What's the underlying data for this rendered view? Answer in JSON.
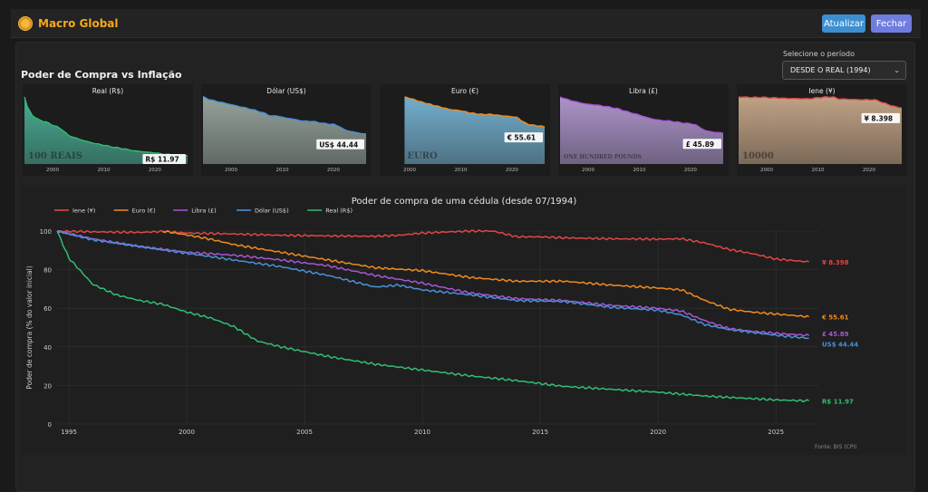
{
  "app": {
    "title": "Macro Global",
    "logo_icon": "coin-logo-icon"
  },
  "toolbar": {
    "update_label": "Atualizar",
    "close_label": "Fechar"
  },
  "page": {
    "title": "Poder de Compra vs Inflação"
  },
  "period": {
    "label": "Selecione o período",
    "selected": "DESDE O REAL (1994)"
  },
  "cards": [
    {
      "title": "Real (R$)",
      "value_label": "R$ 11.97",
      "color": "#2fbf71",
      "note_tint": "#4bb39a",
      "side": "left",
      "ticks": [
        "2000",
        "2010",
        "2020"
      ],
      "note_text": "100 REAIS"
    },
    {
      "title": "Dólar (US$)",
      "value_label": "US$ 44.44",
      "color": "#4a90d9",
      "note_tint": "#9aa9a0",
      "side": "right",
      "ticks": [
        "2000",
        "2010",
        "2020"
      ],
      "note_text": ""
    },
    {
      "title": "Euro (€)",
      "value_label": "€ 55.61",
      "color": "#f08a1d",
      "note_tint": "#77b7d8",
      "side": "right",
      "ticks": [
        "2000",
        "2010",
        "2020"
      ],
      "note_text": "100 EURO"
    },
    {
      "title": "Libra (£)",
      "value_label": "£ 45.89",
      "color": "#a855d6",
      "note_tint": "#b49ad3",
      "side": "right",
      "ticks": [
        "2000",
        "2010",
        "2020"
      ],
      "note_text": "ONE HUNDRED POUNDS"
    },
    {
      "title": "Iene (¥)",
      "value_label": "¥ 8.398",
      "color": "#e04646",
      "note_tint": "#c9a98a",
      "side": "right",
      "ticks": [
        "2000",
        "2010",
        "2020"
      ],
      "note_text": "10000"
    }
  ],
  "chart_data": {
    "type": "line",
    "title": "Poder de compra de uma cédula (desde 07/1994)",
    "ylabel": "Poder de compra (% do valor inicial)",
    "xlabel": "",
    "xlim": [
      1994.5,
      2026.8
    ],
    "ylim": [
      0,
      100
    ],
    "xticks": [
      1995,
      2000,
      2005,
      2010,
      2015,
      2020,
      2025
    ],
    "yticks": [
      0,
      20,
      40,
      60,
      80,
      100
    ],
    "grid": true,
    "legend_position": "top-left",
    "source": "Fonte: BIS (CPI)",
    "series": [
      {
        "name": "Iene (¥)",
        "color": "#e04646",
        "end_label": "¥ 8.398",
        "x": [
          1994.5,
          1996,
          1998,
          1999,
          2000,
          2002,
          2004,
          2006,
          2008,
          2009,
          2010,
          2012,
          2013,
          2014,
          2015,
          2016,
          2018,
          2020,
          2021,
          2022,
          2023,
          2024,
          2025,
          2026.4
        ],
        "y": [
          100,
          99.6,
          99.3,
          99.8,
          99,
          98.5,
          97.8,
          97.5,
          97.3,
          97.8,
          99,
          100,
          100,
          97,
          97,
          96.5,
          96,
          95.8,
          96,
          93.8,
          90.5,
          88.3,
          85.5,
          84
        ]
      },
      {
        "name": "Euro (€)",
        "color": "#f08a1d",
        "end_label": "€ 55.61",
        "x": [
          1999,
          2000,
          2001,
          2002,
          2004,
          2006,
          2008,
          2010,
          2012,
          2014,
          2016,
          2018,
          2020,
          2021,
          2022,
          2023,
          2024,
          2025,
          2026.4
        ],
        "y": [
          100,
          98,
          95.8,
          93,
          89,
          85,
          81,
          79.5,
          76,
          74,
          74,
          72,
          70.5,
          69.5,
          64,
          59.5,
          58,
          57,
          55.6
        ]
      },
      {
        "name": "Libra (£)",
        "color": "#a855d6",
        "end_label": "£ 45.89",
        "x": [
          1994.5,
          1996,
          1998,
          2000,
          2002,
          2004,
          2006,
          2008,
          2010,
          2012,
          2014,
          2016,
          2018,
          2020,
          2021,
          2022,
          2023,
          2024,
          2025,
          2026.4
        ],
        "y": [
          100,
          96,
          92,
          89,
          87.5,
          85,
          82,
          77,
          73,
          68,
          65,
          64,
          61.5,
          60,
          58.5,
          53.5,
          49.5,
          48,
          47,
          45.9
        ]
      },
      {
        "name": "Dólar (US$)",
        "color": "#4a90d9",
        "end_label": "US$ 44.44",
        "x": [
          1994.5,
          1996,
          1998,
          2000,
          2002,
          2004,
          2006,
          2008,
          2009,
          2010,
          2012,
          2014,
          2016,
          2018,
          2020,
          2021,
          2022,
          2023,
          2024,
          2025,
          2026.4
        ],
        "y": [
          100,
          95.5,
          92,
          88.5,
          85,
          81.5,
          77,
          71,
          72,
          69.5,
          67,
          64,
          63.5,
          60.5,
          59,
          56.5,
          51.5,
          49,
          47.5,
          46,
          44.4
        ]
      },
      {
        "name": "Real (R$)",
        "color": "#2fbf71",
        "end_label": "R$ 11.97",
        "x": [
          1994.5,
          1995,
          1996,
          1997,
          1998,
          1999,
          2000,
          2001,
          2002,
          2003,
          2004,
          2005,
          2006,
          2008,
          2010,
          2012,
          2014,
          2016,
          2018,
          2020,
          2021,
          2022,
          2023,
          2024,
          2025,
          2026.4
        ],
        "y": [
          100,
          86,
          72.5,
          67,
          64,
          62,
          58,
          55,
          50.5,
          43,
          40,
          37.5,
          35,
          31,
          28,
          25,
          22.5,
          19.5,
          18,
          16.5,
          15.5,
          14.5,
          13.8,
          13.2,
          12.5,
          12
        ]
      }
    ]
  }
}
